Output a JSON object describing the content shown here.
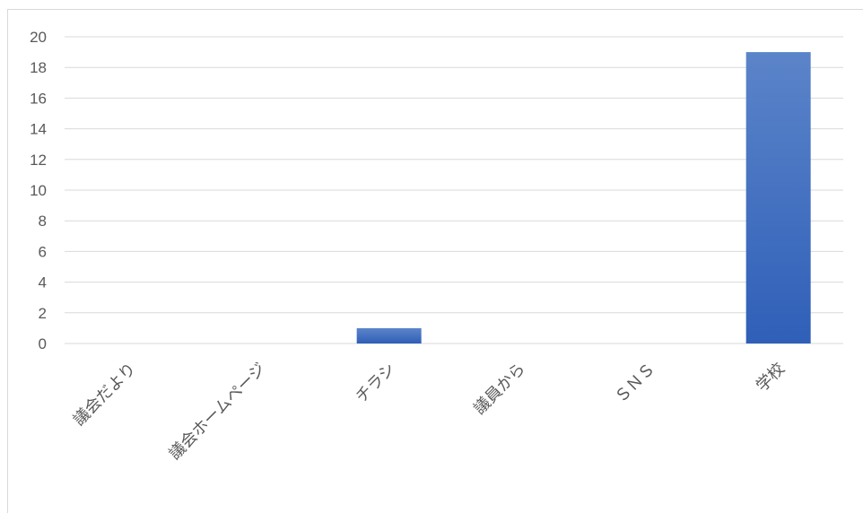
{
  "chart_data": {
    "type": "bar",
    "categories": [
      "議会だより",
      "議会ホームページ",
      "チラシ",
      "議員から",
      "ＳＮＳ",
      "学校"
    ],
    "values": [
      0,
      0,
      1,
      0,
      0,
      19
    ],
    "title": "",
    "xlabel": "",
    "ylabel": "",
    "ylim": [
      0,
      20
    ],
    "yticks": [
      0,
      2,
      4,
      6,
      8,
      10,
      12,
      14,
      16,
      18,
      20
    ],
    "grid": true,
    "legend": "none",
    "colors": {
      "bar_top": "#5b84c9",
      "bar_bottom": "#2f5fb8",
      "grid": "#d9d9d9",
      "text": "#595959"
    }
  }
}
